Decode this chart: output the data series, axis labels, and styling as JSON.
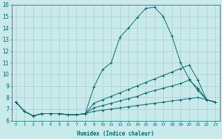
{
  "xlabel": "Humidex (Indice chaleur)",
  "ylabel": "",
  "background_color": "#c8eaea",
  "grid_color": "#a8cccc",
  "line_color": "#006868",
  "xlim": [
    -0.5,
    23.5
  ],
  "ylim": [
    6,
    16
  ],
  "xticks": [
    0,
    1,
    2,
    3,
    4,
    5,
    6,
    7,
    8,
    9,
    10,
    11,
    12,
    13,
    14,
    15,
    16,
    17,
    18,
    19,
    20,
    21,
    22,
    23
  ],
  "yticks": [
    6,
    7,
    8,
    9,
    10,
    11,
    12,
    13,
    14,
    15,
    16
  ],
  "series": [
    {
      "x": [
        0,
        1,
        2,
        3,
        4,
        5,
        6,
        7,
        8,
        9,
        10,
        11,
        12,
        13,
        14,
        15,
        16,
        17,
        18,
        19,
        20,
        21,
        22,
        23
      ],
      "y": [
        7.6,
        6.8,
        6.4,
        6.6,
        6.6,
        6.6,
        6.5,
        6.5,
        6.6,
        8.9,
        10.4,
        11.0,
        13.2,
        14.0,
        14.9,
        15.7,
        15.8,
        15.0,
        13.3,
        11.0,
        9.6,
        8.6,
        7.8,
        7.6
      ]
    },
    {
      "x": [
        0,
        1,
        2,
        3,
        4,
        5,
        6,
        7,
        8,
        9,
        10,
        11,
        12,
        13,
        14,
        15,
        16,
        17,
        18,
        19,
        20,
        21,
        22,
        23
      ],
      "y": [
        7.6,
        6.8,
        6.4,
        6.6,
        6.6,
        6.6,
        6.5,
        6.5,
        6.6,
        6.8,
        6.9,
        7.0,
        7.1,
        7.2,
        7.3,
        7.4,
        7.5,
        7.6,
        7.7,
        7.8,
        7.9,
        8.0,
        7.8,
        7.6
      ]
    },
    {
      "x": [
        0,
        1,
        2,
        3,
        4,
        5,
        6,
        7,
        8,
        9,
        10,
        11,
        12,
        13,
        14,
        15,
        16,
        17,
        18,
        19,
        20,
        21,
        22,
        23
      ],
      "y": [
        7.6,
        6.8,
        6.4,
        6.6,
        6.6,
        6.6,
        6.5,
        6.5,
        6.6,
        7.1,
        7.3,
        7.5,
        7.7,
        7.9,
        8.1,
        8.4,
        8.6,
        8.8,
        9.0,
        9.2,
        9.5,
        8.8,
        7.8,
        7.6
      ]
    },
    {
      "x": [
        0,
        1,
        2,
        3,
        4,
        5,
        6,
        7,
        8,
        9,
        10,
        11,
        12,
        13,
        14,
        15,
        16,
        17,
        18,
        19,
        20,
        21,
        22,
        23
      ],
      "y": [
        7.6,
        6.8,
        6.4,
        6.6,
        6.6,
        6.6,
        6.5,
        6.5,
        6.6,
        7.5,
        7.8,
        8.1,
        8.4,
        8.7,
        9.0,
        9.3,
        9.6,
        9.9,
        10.2,
        10.5,
        10.8,
        9.5,
        7.8,
        7.6
      ]
    }
  ]
}
